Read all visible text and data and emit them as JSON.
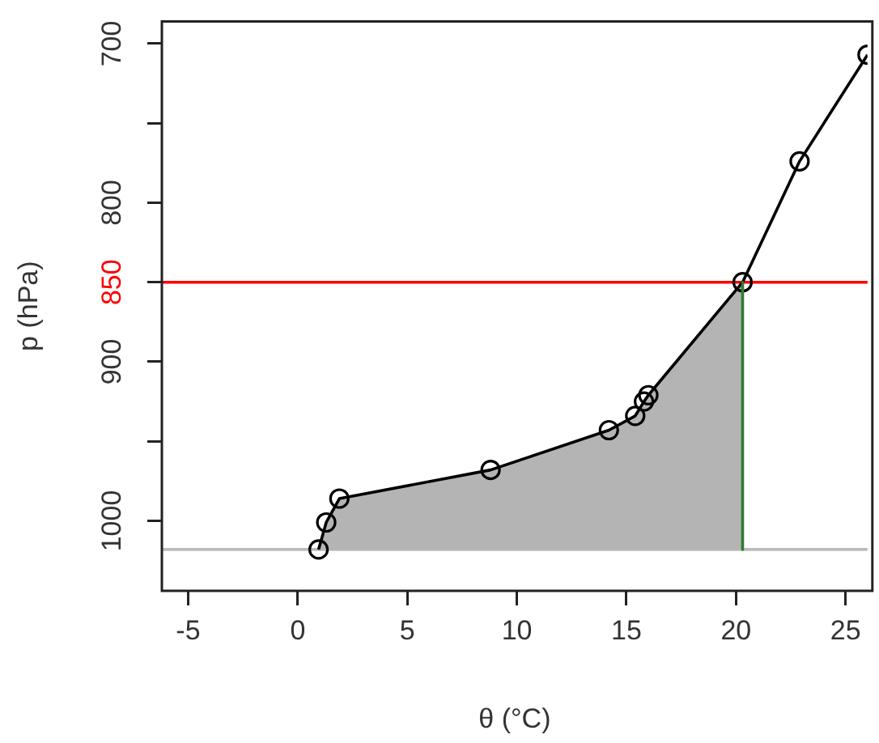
{
  "chart_data": {
    "type": "line",
    "xlabel": "θ (°C)",
    "ylabel": "p (hPa)",
    "xlim": [
      -6.2,
      26
    ],
    "xticks": [
      -5,
      0,
      5,
      10,
      15,
      20,
      25
    ],
    "ylim": [
      1044,
      686
    ],
    "yticks": [
      700,
      {
        "value": 750,
        "label": null
      },
      800,
      850,
      900,
      {
        "value": 950,
        "label": null
      },
      1000
    ],
    "grid": false,
    "legend": false,
    "series": [
      {
        "type": "area",
        "color": "#b4b4b4",
        "x": [
          0.95,
          1.3,
          1.9,
          8.8,
          14.2,
          15.4,
          15.8,
          16.0,
          20.3,
          20.3
        ],
        "values": [
          1018,
          1001,
          986,
          968,
          943,
          934,
          925,
          921,
          850,
          1018
        ]
      },
      {
        "type": "line",
        "color": "#2e7d32",
        "marker": "none",
        "x": [
          20.3,
          20.3
        ],
        "values": [
          850,
          1018
        ]
      },
      {
        "color": "#000000",
        "marker": "circle",
        "x": [
          0.95,
          1.3,
          1.9,
          8.8,
          14.2,
          15.4,
          15.8,
          16.0,
          20.3,
          22.9,
          26
        ],
        "values": [
          1018,
          1001,
          986,
          968,
          943,
          934,
          925,
          921,
          850,
          774,
          707
        ]
      }
    ],
    "ref_lines": [
      {
        "axis": "y",
        "value": 850,
        "color": "#ff0000"
      },
      {
        "axis": "y",
        "value": 1018,
        "color": "#bbbbbb"
      }
    ]
  }
}
